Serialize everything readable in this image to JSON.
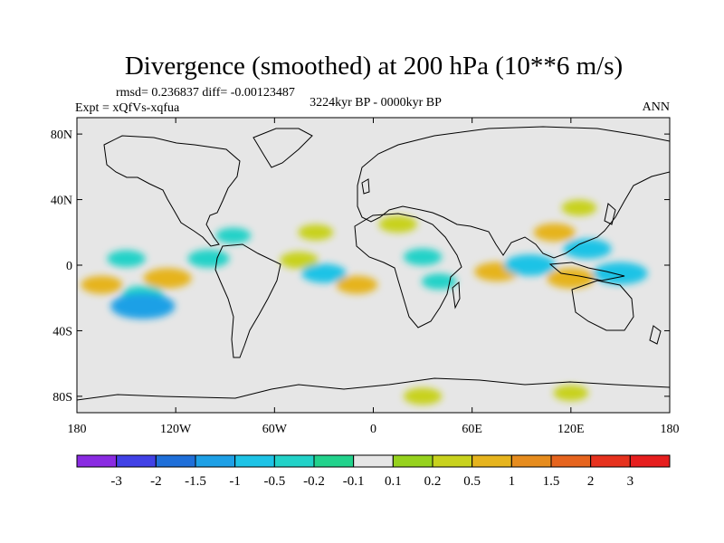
{
  "chart_data": {
    "type": "heatmap",
    "title": "Divergence (smoothed) at 200 hPa (10**6 m/s)",
    "stats": "rmsd= 0.236837  diff= -0.00123487",
    "left_label": "Expt = xQfVs-xqfua",
    "center_label": "3224kyr BP - 0000kyr BP",
    "right_label": "ANN",
    "xlim": [
      -180,
      180
    ],
    "ylim": [
      -90,
      90
    ],
    "x_ticks": [
      -180,
      -120,
      -60,
      0,
      60,
      120,
      180
    ],
    "x_tick_labels": [
      "180",
      "120W",
      "60W",
      "0",
      "60E",
      "120E",
      "180"
    ],
    "y_ticks": [
      80,
      40,
      0,
      -40,
      -80
    ],
    "y_tick_labels": [
      "80N",
      "40N",
      "0",
      "40S",
      "80S"
    ],
    "colorbar": {
      "levels": [
        -3,
        -2,
        -1.5,
        -1,
        -0.5,
        -0.2,
        -0.1,
        0.1,
        0.2,
        0.5,
        1,
        1.5,
        2,
        3
      ],
      "level_labels": [
        "-3",
        "-2",
        "-1.5",
        "-1",
        "-0.5",
        "-0.2",
        "-0.1",
        "0.1",
        "0.2",
        "0.5",
        "1",
        "1.5",
        "2",
        "3"
      ],
      "colors": [
        "#8a2be2",
        "#4141e6",
        "#1f6fd9",
        "#1ea0e6",
        "#1ec3e6",
        "#22d2c8",
        "#22d28c",
        "#e6e6e6",
        "#96d21e",
        "#c8d21e",
        "#e6b41e",
        "#e68c1e",
        "#e6641e",
        "#e6321e",
        "#e61e1e"
      ]
    },
    "anomaly_regions": [
      {
        "lon": -165,
        "lat": -12,
        "value": 0.5
      },
      {
        "lon": -140,
        "lat": -18,
        "value": -0.5
      },
      {
        "lon": -140,
        "lat": -25,
        "value": -1.2
      },
      {
        "lon": -125,
        "lat": -8,
        "value": 0.7
      },
      {
        "lon": -150,
        "lat": 4,
        "value": -0.4
      },
      {
        "lon": -100,
        "lat": 4,
        "value": -0.5
      },
      {
        "lon": -85,
        "lat": 18,
        "value": -0.3
      },
      {
        "lon": -35,
        "lat": 20,
        "value": 0.3
      },
      {
        "lon": -45,
        "lat": 3,
        "value": 0.4
      },
      {
        "lon": -30,
        "lat": -5,
        "value": -0.6
      },
      {
        "lon": -10,
        "lat": -12,
        "value": 0.5
      },
      {
        "lon": 15,
        "lat": 25,
        "value": 0.4
      },
      {
        "lon": 30,
        "lat": 5,
        "value": -0.4
      },
      {
        "lon": 40,
        "lat": -10,
        "value": -0.3
      },
      {
        "lon": 75,
        "lat": -4,
        "value": 0.6
      },
      {
        "lon": 95,
        "lat": 0,
        "value": -0.8
      },
      {
        "lon": 130,
        "lat": 10,
        "value": -0.7
      },
      {
        "lon": 150,
        "lat": -5,
        "value": -0.9
      },
      {
        "lon": 120,
        "lat": -8,
        "value": 0.7
      },
      {
        "lon": 110,
        "lat": 20,
        "value": 0.5
      },
      {
        "lon": 125,
        "lat": 35,
        "value": 0.3
      },
      {
        "lon": 30,
        "lat": -80,
        "value": 0.4
      },
      {
        "lon": 120,
        "lat": -78,
        "value": 0.3
      }
    ]
  },
  "colors": {
    "ocean_fill": "#e6e6e6",
    "coastline": "#000000",
    "background": "#ffffff"
  }
}
